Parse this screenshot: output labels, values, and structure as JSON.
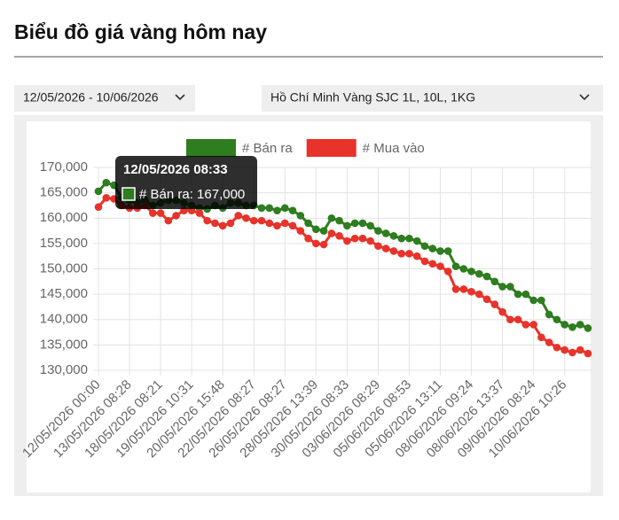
{
  "header": {
    "title": "Biểu đồ giá vàng hôm nay"
  },
  "filters": {
    "date_range": "12/05/2026 - 10/06/2026",
    "product": "Hồ Chí Minh Vàng SJC 1L, 10L, 1KG"
  },
  "chart_data": {
    "type": "line",
    "categories": [
      "12/05/2026 00:00",
      null,
      null,
      null,
      "13/05/2026 08:28",
      null,
      null,
      null,
      "18/05/2026 08:21",
      null,
      null,
      null,
      "19/05/2026 10:31",
      null,
      null,
      null,
      "20/05/2026 15:48",
      null,
      null,
      null,
      "22/05/2026 08:27",
      null,
      null,
      null,
      "26/05/2026 08:27",
      null,
      null,
      null,
      "28/05/2026 13:39",
      null,
      null,
      null,
      "30/05/2026 08:33",
      null,
      null,
      null,
      "03/06/2026 08:29",
      null,
      null,
      null,
      "05/06/2026 08:53",
      null,
      null,
      null,
      "05/06/2026 13:11",
      null,
      null,
      null,
      "08/06/2026 09:24",
      null,
      null,
      null,
      "08/06/2026 13:37",
      null,
      null,
      null,
      "09/06/2026 08:24",
      null,
      null,
      null,
      "10/06/2026 10:26",
      null,
      null,
      null
    ],
    "series": [
      {
        "name": "# Bán ra",
        "color": "#2e7d1f",
        "values": [
          165300,
          167000,
          166500,
          164000,
          163500,
          163000,
          163500,
          162500,
          163000,
          163500,
          163500,
          163000,
          162500,
          162000,
          161800,
          162500,
          162000,
          163000,
          163000,
          162500,
          162500,
          162000,
          162000,
          161500,
          162000,
          161500,
          160500,
          159000,
          157800,
          157500,
          160000,
          159500,
          158500,
          159000,
          159000,
          158500,
          157500,
          157000,
          156500,
          156000,
          156000,
          155500,
          154500,
          154000,
          153500,
          153500,
          150500,
          150000,
          149500,
          149000,
          148500,
          147500,
          146500,
          146500,
          145000,
          145000,
          143800,
          143800,
          141000,
          140000,
          139000,
          138500,
          139000,
          138300
        ]
      },
      {
        "name": "# Mua vào",
        "color": "#e8332a",
        "values": [
          162200,
          164000,
          163800,
          162500,
          162000,
          162000,
          162500,
          161000,
          161000,
          159500,
          160500,
          161500,
          161500,
          161000,
          159500,
          159000,
          158500,
          159000,
          160500,
          160000,
          159500,
          159500,
          159000,
          158500,
          159000,
          158500,
          157500,
          156000,
          155000,
          154800,
          157000,
          156500,
          155500,
          156000,
          156000,
          155500,
          154500,
          154000,
          153500,
          153000,
          153000,
          152500,
          151500,
          151000,
          150500,
          149500,
          146000,
          146000,
          145500,
          145000,
          144000,
          143000,
          141500,
          140000,
          140000,
          139000,
          139000,
          136500,
          135500,
          134500,
          134000,
          133500,
          134000,
          133300
        ]
      }
    ],
    "ylim": [
      130000,
      170000
    ],
    "yticks": [
      {
        "value": 130000,
        "label": "130,000"
      },
      {
        "value": 135000,
        "label": "135,000"
      },
      {
        "value": 140000,
        "label": "140,000"
      },
      {
        "value": 145000,
        "label": "145,000"
      },
      {
        "value": 150000,
        "label": "150,000"
      },
      {
        "value": 155000,
        "label": "155,000"
      },
      {
        "value": 160000,
        "label": "160,000"
      },
      {
        "value": 165000,
        "label": "165,000"
      },
      {
        "value": 170000,
        "label": "170,000"
      }
    ],
    "grid": true,
    "legend": "top",
    "tooltip": {
      "title": "12/05/2026 08:33",
      "label": "# Bán ra: 167,000"
    }
  }
}
